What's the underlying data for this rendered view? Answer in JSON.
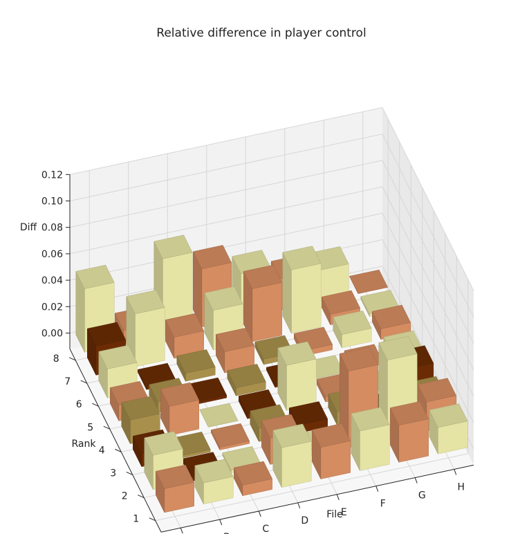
{
  "chart_data": {
    "type": "bar3d",
    "title": "Relative difference in player control",
    "xlabel": "File",
    "ylabel": "Rank",
    "zlabel": "Diff",
    "files": [
      "A",
      "B",
      "C",
      "D",
      "E",
      "F",
      "G",
      "H"
    ],
    "ranks": [
      "1",
      "2",
      "3",
      "4",
      "5",
      "6",
      "7",
      "8"
    ],
    "zlim": [
      0,
      0.12
    ],
    "zticks": [
      "0.00",
      "0.02",
      "0.04",
      "0.06",
      "0.08",
      "0.10",
      "0.12"
    ],
    "grid": true,
    "values": [
      [
        0.018,
        0.016,
        0.008,
        0.03,
        0.024,
        0.03,
        0.028,
        0.02
      ],
      [
        0.026,
        -0.004,
        0.002,
        0.02,
        0.004,
        0.058,
        0.06,
        0.022
      ],
      [
        -0.01,
        -0.002,
        0.002,
        -0.01,
        -0.006,
        -0.01,
        -0.002,
        -0.006
      ],
      [
        -0.018,
        0.022,
        0.0,
        -0.004,
        0.034,
        0.004,
        0.0,
        -0.012
      ],
      [
        0.012,
        -0.008,
        -0.002,
        -0.006,
        -0.002,
        0.0,
        0.002,
        0.006
      ],
      [
        0.022,
        -0.002,
        -0.006,
        0.016,
        -0.004,
        0.004,
        0.01,
        0.008
      ],
      [
        -0.022,
        0.04,
        0.016,
        0.03,
        0.04,
        0.048,
        0.008,
        0.002
      ],
      [
        0.048,
        0.01,
        0.058,
        0.044,
        0.034,
        0.024,
        0.024,
        0.0
      ]
    ]
  }
}
